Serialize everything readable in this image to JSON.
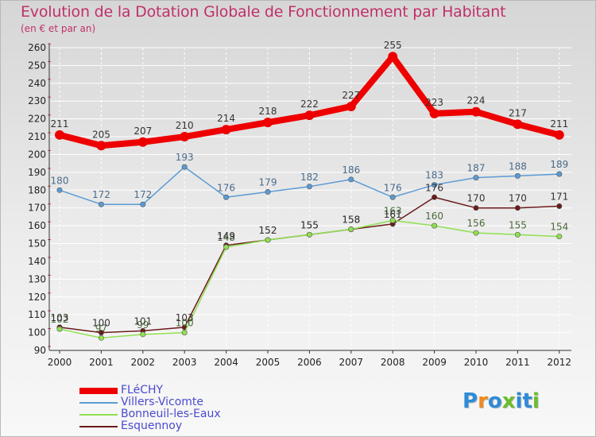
{
  "header": {
    "title": "Evolution de la Dotation Globale de Fonctionnement par Habitant",
    "subtitle": "(en € et par an)"
  },
  "logo": {
    "text": "Proxiti",
    "letters": [
      "P",
      "r",
      "o",
      "x",
      "i",
      "t",
      "i"
    ],
    "colors": [
      "#2e8bd8",
      "#f08a1c",
      "#2e8bd8",
      "#6abe2a",
      "#2e8bd8",
      "#2e8bd8",
      "#6abe2a"
    ]
  },
  "chart_data": {
    "type": "line",
    "title": "Evolution de la Dotation Globale de Fonctionnement par Habitant",
    "subtitle": "(en € et par an)",
    "xlabel": "",
    "ylabel": "",
    "ylim": [
      90,
      260
    ],
    "yticks": [
      90,
      100,
      110,
      120,
      130,
      140,
      150,
      160,
      170,
      180,
      190,
      200,
      210,
      220,
      230,
      240,
      250,
      260
    ],
    "grid": true,
    "legend_position": "bottom-left",
    "x": [
      "2000",
      "2001",
      "2002",
      "2003",
      "2004",
      "2005",
      "2006",
      "2007",
      "2008",
      "2009",
      "2010",
      "2011",
      "2012"
    ],
    "series": [
      {
        "name": "FLéCHY",
        "color": "#ee0000",
        "values": [
          211,
          205,
          207,
          210,
          214,
          218,
          222,
          227,
          255,
          223,
          224,
          217,
          211
        ]
      },
      {
        "name": "Villers-Vicomte",
        "color": "#5b9bd5",
        "values": [
          180,
          172,
          172,
          193,
          176,
          179,
          182,
          186,
          176,
          183,
          187,
          188,
          189
        ]
      },
      {
        "name": "Bonneuil-les-Eaux",
        "color": "#90e050",
        "values": [
          102,
          97,
          99,
          100,
          148,
          152,
          155,
          158,
          163,
          160,
          156,
          155,
          154
        ]
      },
      {
        "name": "Esquennoy",
        "color": "#6b1a1a",
        "values": [
          103,
          100,
          101,
          103,
          149,
          152,
          155,
          158,
          161,
          176,
          170,
          170,
          171
        ]
      }
    ]
  }
}
